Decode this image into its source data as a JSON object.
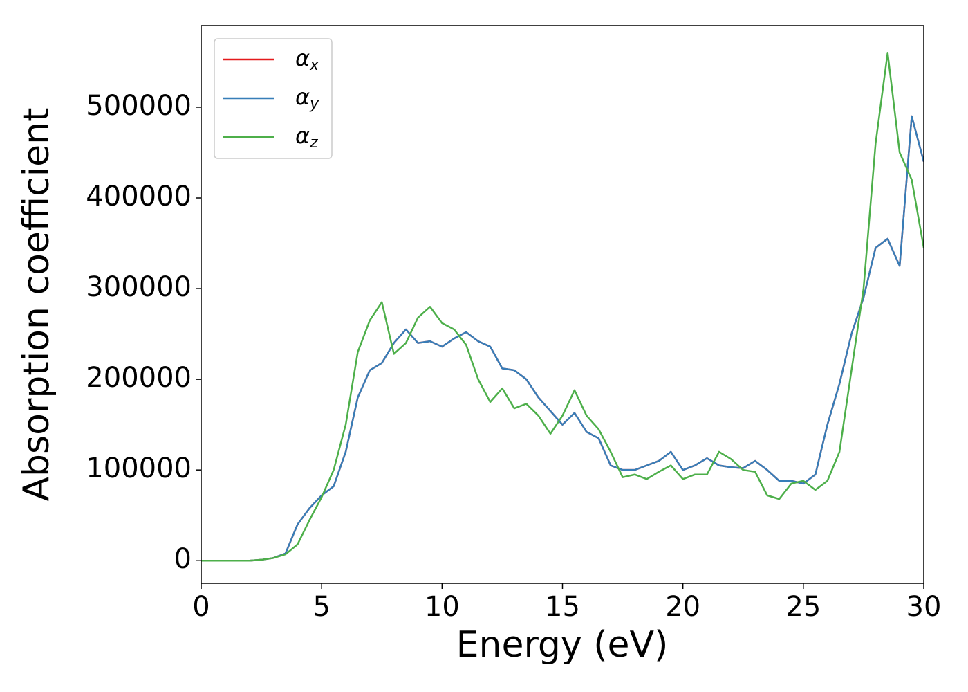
{
  "chart_data": {
    "type": "line",
    "xlabel": "Energy (eV)",
    "ylabel": "Absorption coefficient",
    "x": [
      0,
      0.5,
      1,
      1.5,
      2,
      2.5,
      3,
      3.5,
      4,
      4.5,
      5,
      5.5,
      6,
      6.5,
      7,
      7.5,
      8,
      8.5,
      9,
      9.5,
      10,
      10.5,
      11,
      11.5,
      12,
      12.5,
      13,
      13.5,
      14,
      14.5,
      15,
      15.5,
      16,
      16.5,
      17,
      17.5,
      18,
      18.5,
      19,
      19.5,
      20,
      20.5,
      21,
      21.5,
      22,
      22.5,
      23,
      23.5,
      24,
      24.5,
      25,
      25.5,
      26,
      26.5,
      27,
      27.5,
      28,
      28.5,
      29,
      29.5,
      30
    ],
    "series": [
      {
        "name": "αx",
        "color": "#e41a1c",
        "values": [
          0,
          0,
          0,
          0,
          0,
          1000,
          3000,
          8000,
          40000,
          58000,
          72000,
          82000,
          120000,
          180000,
          210000,
          218000,
          240000,
          255000,
          240000,
          242000,
          236000,
          245000,
          252000,
          242000,
          236000,
          212000,
          210000,
          200000,
          180000,
          165000,
          150000,
          163000,
          142000,
          135000,
          105000,
          100000,
          100000,
          105000,
          110000,
          120000,
          100000,
          105000,
          113000,
          105000,
          103000,
          102000,
          110000,
          100000,
          88000,
          88000,
          85000,
          95000,
          150000,
          195000,
          250000,
          290000,
          345000,
          355000,
          325000,
          490000,
          440000
        ]
      },
      {
        "name": "αy",
        "color": "#377eb8",
        "values": [
          0,
          0,
          0,
          0,
          0,
          1000,
          3000,
          8000,
          40000,
          58000,
          72000,
          82000,
          120000,
          180000,
          210000,
          218000,
          240000,
          255000,
          240000,
          242000,
          236000,
          245000,
          252000,
          242000,
          236000,
          212000,
          210000,
          200000,
          180000,
          165000,
          150000,
          163000,
          142000,
          135000,
          105000,
          100000,
          100000,
          105000,
          110000,
          120000,
          100000,
          105000,
          113000,
          105000,
          103000,
          102000,
          110000,
          100000,
          88000,
          88000,
          85000,
          95000,
          150000,
          195000,
          250000,
          290000,
          345000,
          355000,
          325000,
          490000,
          440000
        ]
      },
      {
        "name": "αz",
        "color": "#4daf4a",
        "values": [
          0,
          0,
          0,
          0,
          0,
          1000,
          3000,
          7000,
          18000,
          45000,
          70000,
          100000,
          150000,
          230000,
          265000,
          285000,
          228000,
          240000,
          268000,
          280000,
          262000,
          255000,
          238000,
          200000,
          175000,
          190000,
          168000,
          173000,
          160000,
          140000,
          160000,
          188000,
          160000,
          145000,
          120000,
          92000,
          95000,
          90000,
          98000,
          105000,
          90000,
          95000,
          95000,
          120000,
          112000,
          100000,
          98000,
          72000,
          68000,
          85000,
          88000,
          78000,
          88000,
          120000,
          210000,
          300000,
          460000,
          560000,
          450000,
          420000,
          345000
        ]
      }
    ],
    "xlim": [
      0,
      30
    ],
    "xticks": [
      0,
      5,
      10,
      15,
      20,
      25,
      30
    ],
    "ylim": [
      -25000,
      590000
    ],
    "yticks": [
      0,
      100000,
      200000,
      300000,
      400000,
      500000
    ],
    "legend": "upper left",
    "grid": false
  }
}
